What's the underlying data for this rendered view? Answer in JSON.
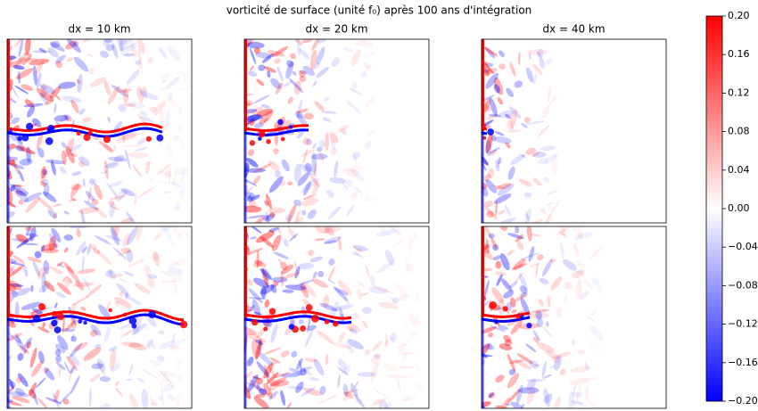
{
  "chart_data": {
    "type": "heatmap-grid",
    "title": "vorticité de surface (unité f₀) après 100 ans d'intégration",
    "column_titles": [
      "dx = 10 km",
      "dx = 20 km",
      "dx = 40 km"
    ],
    "colormap": [
      "#0000ff",
      "#ffffff",
      "#ff0000"
    ],
    "colorbar": {
      "ylim": [
        -0.2,
        0.2
      ],
      "yticks": [
        {
          "value": 0.2,
          "label": "0.20"
        },
        {
          "value": 0.16,
          "label": "0.16"
        },
        {
          "value": 0.12,
          "label": "0.12"
        },
        {
          "value": 0.08,
          "label": "0.08"
        },
        {
          "value": 0.04,
          "label": "0.04"
        },
        {
          "value": 0,
          "label": "0.00"
        },
        {
          "value": -0.04,
          "label": "−0.04"
        },
        {
          "value": -0.08,
          "label": "−0.08"
        },
        {
          "value": -0.12,
          "label": "−0.12"
        },
        {
          "value": -0.16,
          "label": "−0.16"
        },
        {
          "value": -0.2,
          "label": "−0.20"
        }
      ]
    }
  }
}
